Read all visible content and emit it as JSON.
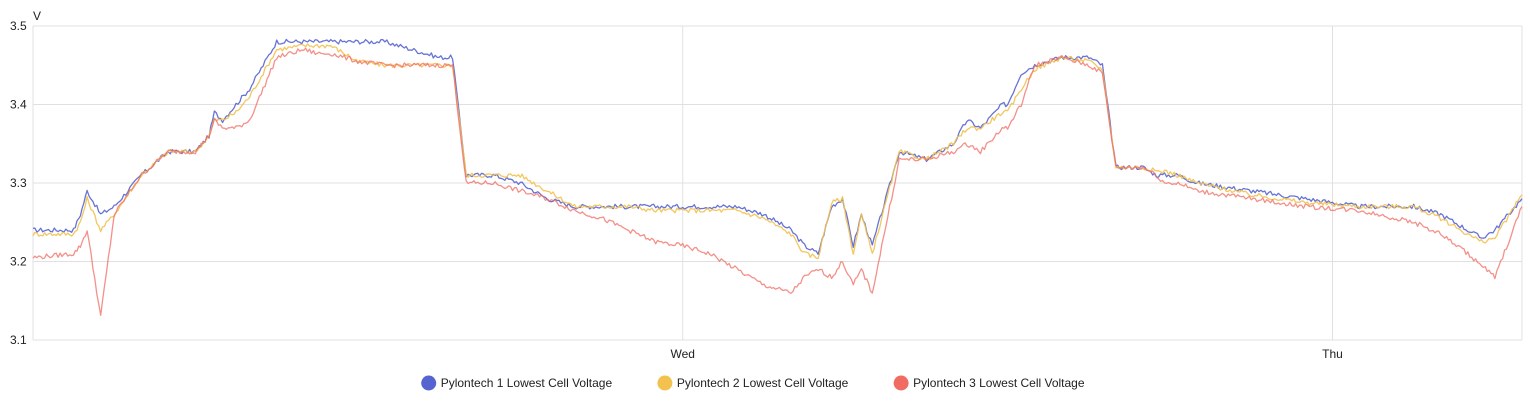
{
  "chart_data": {
    "type": "line",
    "title": "",
    "ylabel": "V",
    "xlabel": "",
    "ylim": [
      3.1,
      3.5
    ],
    "y_ticks": [
      "3.1",
      "3.2",
      "3.3",
      "3.4",
      "3.5"
    ],
    "x_ticks": [
      {
        "label": "Wed",
        "x": 24
      },
      {
        "label": "Thu",
        "x": 48
      }
    ],
    "xlim": [
      0,
      55
    ],
    "x_unit": "hours",
    "grid": true,
    "legend_position": "bottom",
    "series": [
      {
        "name": "Pylontech 1 Lowest Cell Voltage",
        "color": "#5664d2",
        "x": [
          0,
          1.5,
          1.75,
          2,
          2.5,
          3,
          4,
          5,
          6,
          6.5,
          6.7,
          7,
          7.5,
          8,
          9,
          10,
          10.5,
          11,
          12,
          13,
          14,
          15,
          15.5,
          16,
          17,
          18,
          19,
          20,
          21,
          22,
          23,
          24,
          25,
          26,
          27,
          28,
          28.5,
          29,
          29.5,
          29.9,
          30.3,
          30.6,
          31,
          32,
          33,
          34,
          34.5,
          35,
          35.8,
          36,
          36.5,
          37,
          38,
          39,
          39.5,
          40,
          41,
          41.5,
          41.8,
          42.3,
          43,
          45,
          47,
          49,
          51,
          52,
          53,
          53.5,
          54,
          55
        ],
        "values": [
          3.24,
          3.24,
          3.26,
          3.29,
          3.26,
          3.27,
          3.31,
          3.34,
          3.34,
          3.36,
          3.39,
          3.38,
          3.4,
          3.42,
          3.48,
          3.48,
          3.48,
          3.48,
          3.48,
          3.48,
          3.47,
          3.46,
          3.46,
          3.31,
          3.31,
          3.3,
          3.28,
          3.27,
          3.27,
          3.27,
          3.27,
          3.27,
          3.27,
          3.27,
          3.26,
          3.24,
          3.22,
          3.21,
          3.27,
          3.28,
          3.22,
          3.26,
          3.22,
          3.34,
          3.33,
          3.35,
          3.38,
          3.37,
          3.4,
          3.4,
          3.44,
          3.45,
          3.46,
          3.46,
          3.45,
          3.32,
          3.32,
          3.31,
          3.31,
          3.31,
          3.3,
          3.29,
          3.28,
          3.27,
          3.27,
          3.26,
          3.24,
          3.23,
          3.24,
          3.28
        ]
      },
      {
        "name": "Pylontech 2 Lowest Cell Voltage",
        "color": "#f2c14e",
        "x": [
          0,
          1.5,
          1.75,
          2,
          2.5,
          3,
          4,
          5,
          6,
          6.5,
          6.7,
          7,
          7.5,
          8,
          9,
          10,
          10.5,
          11,
          12,
          13,
          14,
          15,
          15.5,
          16,
          17,
          18,
          19,
          20,
          21,
          22,
          23,
          24,
          25,
          26,
          27,
          28,
          28.5,
          29,
          29.5,
          29.9,
          30.3,
          30.6,
          31,
          32,
          33,
          34,
          34.5,
          35,
          35.8,
          36,
          36.5,
          37,
          38,
          39,
          39.5,
          40,
          41,
          41.5,
          41.8,
          42.3,
          43,
          45,
          47,
          49,
          51,
          52,
          53,
          53.5,
          54,
          55
        ],
        "values": [
          3.235,
          3.235,
          3.25,
          3.28,
          3.24,
          3.26,
          3.31,
          3.34,
          3.34,
          3.36,
          3.38,
          3.38,
          3.39,
          3.41,
          3.47,
          3.475,
          3.475,
          3.475,
          3.455,
          3.45,
          3.45,
          3.45,
          3.45,
          3.31,
          3.31,
          3.31,
          3.29,
          3.27,
          3.27,
          3.27,
          3.265,
          3.265,
          3.265,
          3.265,
          3.255,
          3.235,
          3.21,
          3.205,
          3.275,
          3.28,
          3.21,
          3.26,
          3.21,
          3.34,
          3.33,
          3.35,
          3.37,
          3.37,
          3.39,
          3.39,
          3.42,
          3.445,
          3.46,
          3.455,
          3.445,
          3.32,
          3.32,
          3.315,
          3.315,
          3.31,
          3.3,
          3.285,
          3.275,
          3.27,
          3.27,
          3.255,
          3.235,
          3.225,
          3.23,
          3.285
        ]
      },
      {
        "name": "Pylontech 3 Lowest Cell Voltage",
        "color": "#f06b62",
        "x": [
          0,
          1.5,
          1.75,
          2,
          2.5,
          3,
          4,
          5,
          6,
          6.5,
          6.7,
          7,
          7.5,
          8,
          9,
          10,
          10.5,
          11,
          12,
          13,
          14,
          15,
          15.5,
          16,
          17,
          18,
          19,
          20,
          21,
          22,
          23,
          24,
          25,
          26,
          27,
          28,
          28.5,
          29,
          29.5,
          29.9,
          30.3,
          30.6,
          31,
          32,
          33,
          34,
          34.5,
          35,
          35.8,
          36,
          36.5,
          37,
          38,
          39,
          39.5,
          40,
          41,
          41.5,
          41.8,
          42.3,
          43,
          45,
          47,
          49,
          51,
          52,
          53,
          53.5,
          54,
          55
        ],
        "values": [
          3.205,
          3.21,
          3.22,
          3.24,
          3.13,
          3.26,
          3.31,
          3.34,
          3.34,
          3.36,
          3.38,
          3.37,
          3.37,
          3.38,
          3.46,
          3.47,
          3.465,
          3.465,
          3.455,
          3.45,
          3.45,
          3.45,
          3.45,
          3.3,
          3.3,
          3.29,
          3.28,
          3.265,
          3.255,
          3.24,
          3.225,
          3.22,
          3.21,
          3.19,
          3.17,
          3.16,
          3.18,
          3.19,
          3.18,
          3.2,
          3.17,
          3.19,
          3.16,
          3.33,
          3.33,
          3.34,
          3.35,
          3.34,
          3.37,
          3.37,
          3.4,
          3.45,
          3.46,
          3.45,
          3.44,
          3.32,
          3.32,
          3.31,
          3.3,
          3.3,
          3.29,
          3.28,
          3.27,
          3.265,
          3.25,
          3.235,
          3.21,
          3.195,
          3.18,
          3.27
        ]
      }
    ]
  }
}
